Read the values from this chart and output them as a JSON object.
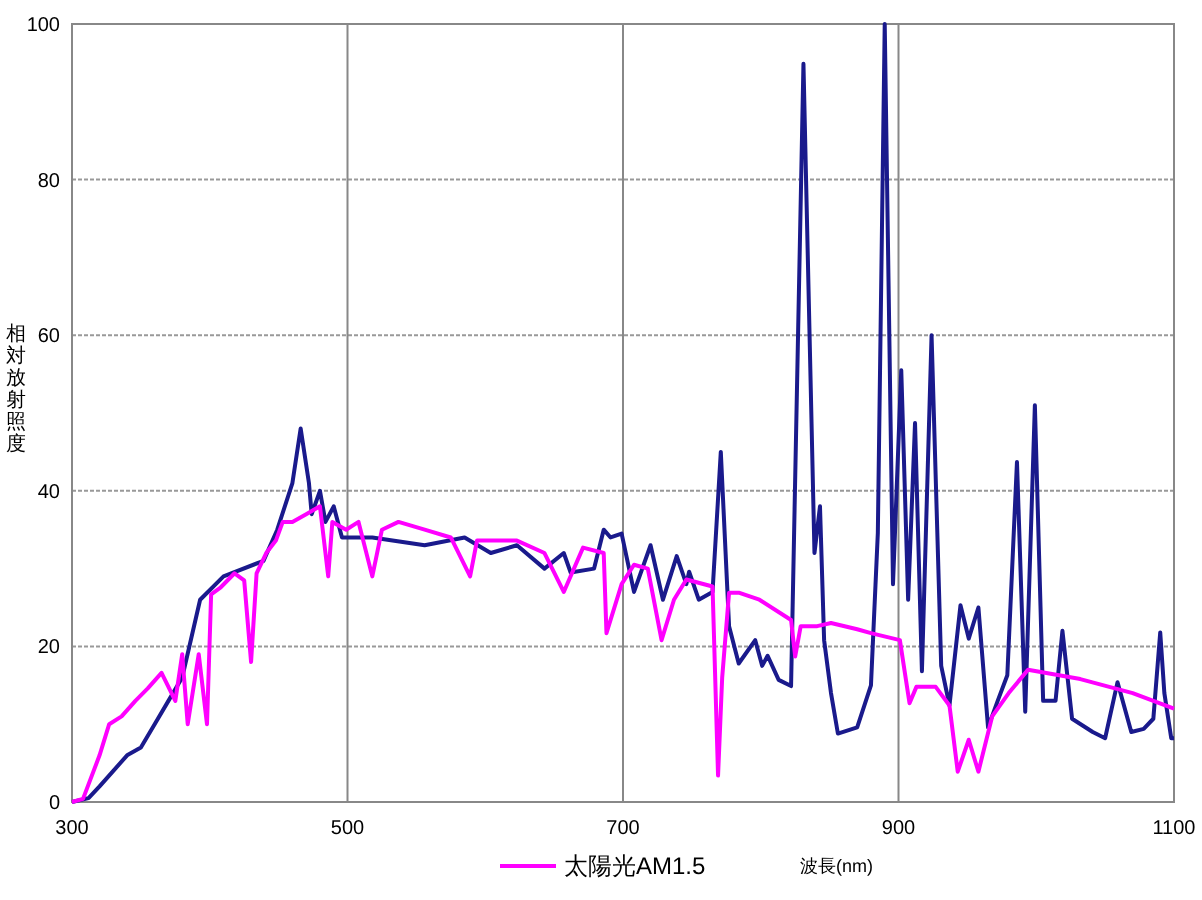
{
  "chart_data": {
    "type": "line",
    "ylabel": "相対放射照度",
    "xlabel": "波長(nm)",
    "xlim": [
      300,
      1100
    ],
    "ylim": [
      0,
      100
    ],
    "xticks": [
      300,
      500,
      700,
      900,
      1100
    ],
    "yticks": [
      0,
      20,
      40,
      60,
      80,
      100
    ],
    "grid": true,
    "legend": "bottom",
    "marker": "none",
    "line_style": "solid",
    "series": [
      {
        "color": "#1a1a8c",
        "x": [
          300,
          312,
          320,
          330,
          340,
          350,
          360,
          370,
          380,
          393,
          410,
          439,
          449,
          460,
          466,
          472,
          474,
          480,
          484,
          490,
          496,
          518,
          556,
          585,
          604,
          623,
          643,
          657,
          662,
          679,
          686,
          691,
          699,
          708,
          720,
          729,
          739,
          746,
          748,
          755,
          765,
          771,
          777,
          784,
          796,
          801,
          805,
          813,
          822,
          831,
          839,
          843,
          846,
          851,
          856,
          870,
          880,
          885,
          890,
          896,
          902,
          907,
          912,
          917,
          924,
          931,
          937,
          945,
          951,
          958,
          965,
          972,
          979,
          986,
          992,
          999,
          1005,
          1014,
          1019,
          1026,
          1041,
          1050,
          1059,
          1069,
          1078,
          1085,
          1090,
          1093,
          1098,
          1100
        ],
        "values": [
          0,
          0.5,
          2,
          4,
          6,
          7,
          10,
          13,
          16,
          26,
          29,
          31,
          35,
          41,
          48,
          41,
          37,
          40,
          36,
          38,
          34,
          34,
          33,
          34,
          32,
          33,
          30,
          32,
          29.5,
          30,
          35,
          34,
          34.5,
          27,
          33,
          26,
          31.6,
          28,
          29.6,
          26,
          27,
          45,
          22.6,
          17.8,
          20.8,
          17.5,
          18.8,
          15.7,
          14.9,
          94.9,
          32,
          38,
          20.8,
          14,
          8.8,
          9.6,
          15,
          34.6,
          100,
          28,
          55.5,
          26,
          48.7,
          16.8,
          60,
          17.5,
          12.4,
          25.3,
          21,
          25,
          9.6,
          13,
          16.3,
          43.7,
          11.6,
          51,
          13,
          13,
          22,
          10.7,
          9,
          8.2,
          15.4,
          9,
          9.4,
          10.7,
          21.8,
          14,
          8.2,
          8.2
        ]
      },
      {
        "name": "太陽光AM1.5",
        "color": "#ff00ff",
        "x": [
          300,
          308,
          320,
          327,
          336,
          346,
          355,
          365,
          375,
          380,
          384,
          392,
          398,
          401,
          408,
          418,
          425,
          430,
          434,
          441,
          448,
          453,
          460,
          470,
          480,
          486,
          489,
          499,
          508,
          518,
          525,
          537,
          556,
          575,
          589,
          594,
          623,
          643,
          657,
          671,
          686,
          688,
          699,
          708,
          718,
          728,
          737,
          746,
          765,
          769,
          772,
          777,
          784,
          799,
          822,
          825,
          829,
          841,
          851,
          870,
          880,
          901,
          908,
          913,
          927,
          937,
          943,
          951,
          958,
          968,
          980,
          994,
          1032,
          1070,
          1100
        ],
        "values": [
          0,
          0.4,
          6,
          10,
          11,
          13,
          14.6,
          16.6,
          13,
          19,
          10,
          19,
          10,
          26.7,
          27.6,
          29.4,
          28.5,
          18,
          29.4,
          32,
          33.6,
          36,
          36,
          37,
          38,
          29,
          36,
          35,
          36,
          29,
          35,
          36,
          35,
          34,
          29,
          33.6,
          33.6,
          32,
          27,
          32.7,
          32,
          21.7,
          28,
          30.5,
          30,
          20.8,
          26,
          28.6,
          27.7,
          3.4,
          16,
          26.9,
          26.9,
          26,
          23.4,
          18.7,
          22.6,
          22.6,
          23,
          22.2,
          21.7,
          20.8,
          12.7,
          14.8,
          14.8,
          12.4,
          3.9,
          8,
          3.9,
          11,
          14,
          17,
          15.8,
          14,
          12
        ]
      }
    ]
  }
}
